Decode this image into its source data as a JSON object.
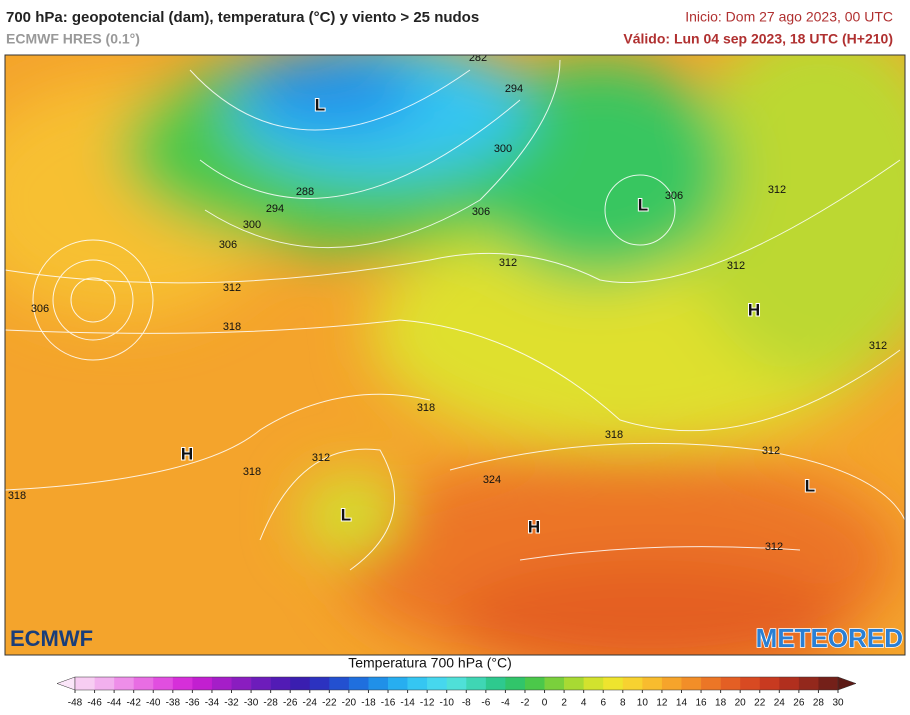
{
  "header": {
    "title": "700 hPa: geopotencial (dam), temperatura (°C) y viento > 25 nudos",
    "model": "ECMWF HRES (0.1°)",
    "init": "Inicio: Dom 27 ago 2023, 00 UTC",
    "valid": "Válido: Lun 04 sep 2023, 18 UTC (H+210)"
  },
  "map": {
    "contour_labels": [
      282,
      294,
      300,
      288,
      294,
      300,
      306,
      306,
      306,
      312,
      312,
      312,
      312,
      318,
      306,
      312,
      318,
      318,
      312,
      312,
      318,
      324,
      318,
      312
    ],
    "pressure_centers": [
      "L",
      "L",
      "H",
      "H",
      "L",
      "L",
      "H"
    ]
  },
  "logos": {
    "left": "ECMWF",
    "right": "METEORED"
  },
  "colorbar": {
    "title": "Temperatura 700 hPa (°C)",
    "ticks": [
      -48,
      -46,
      -44,
      -42,
      -40,
      -38,
      -36,
      -34,
      -32,
      -30,
      -28,
      -26,
      -24,
      -22,
      -20,
      -18,
      -16,
      -14,
      -12,
      -10,
      -8,
      -6,
      -4,
      -2,
      0,
      2,
      4,
      6,
      8,
      10,
      12,
      14,
      16,
      18,
      20,
      22,
      24,
      26,
      28,
      30
    ],
    "colors": [
      "#f7cdf2",
      "#f2b0ee",
      "#ee8ee9",
      "#e86de3",
      "#e14ee0",
      "#d62fd9",
      "#c21fd0",
      "#a51ec8",
      "#8a1dc0",
      "#6d1cbb",
      "#521bb5",
      "#3a1eb0",
      "#2c32c0",
      "#2350d0",
      "#1f6fde",
      "#2090e8",
      "#27aef0",
      "#35c6f2",
      "#46d7ee",
      "#4fe0d8",
      "#3fd6b4",
      "#2ec98e",
      "#31c56a",
      "#4bc84a",
      "#7ad03c",
      "#a8da33",
      "#d2e22e",
      "#eee42e",
      "#f7d230",
      "#f8bc2e",
      "#f6a42b",
      "#f28e28",
      "#ec7626",
      "#e45f24",
      "#d84a22",
      "#c83a20",
      "#b12f1e",
      "#93281c",
      "#742019"
    ],
    "under_color": "#fbe6f9",
    "over_color": "#5c1a15"
  }
}
